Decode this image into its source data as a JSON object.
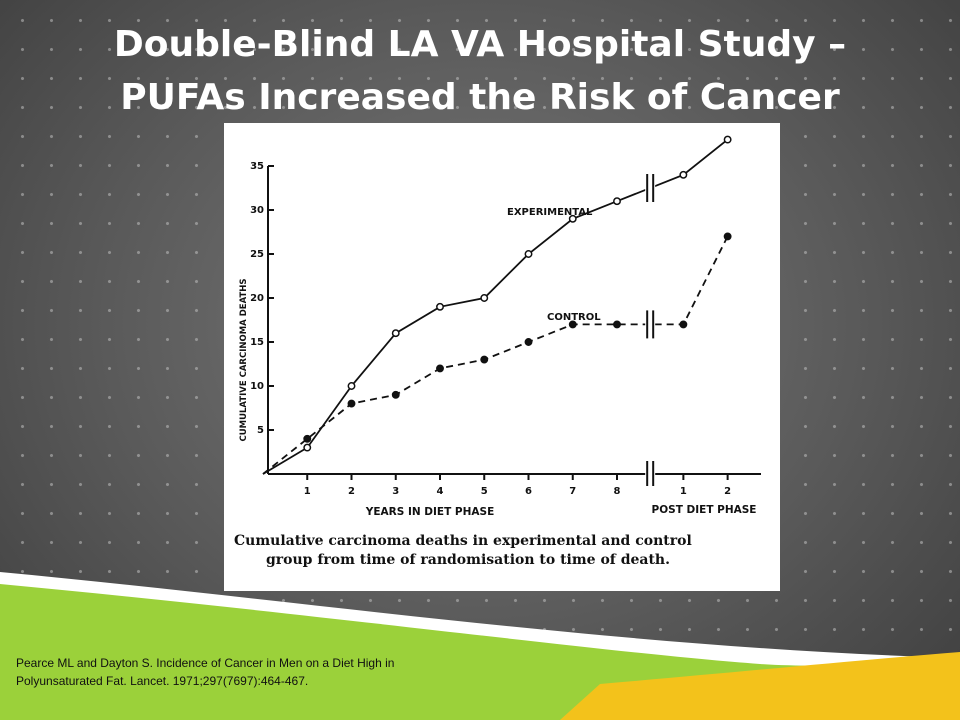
{
  "slide": {
    "title_line1": "Double-Blind LA VA Hospital Study –",
    "title_line2": "PUFAs Increased the Risk of Cancer",
    "citation_line1": "Pearce ML and Dayton S.  Incidence of Cancer in Men on a Diet High in",
    "citation_line2": "Polyunsaturated Fat. Lancet. 1971;297(7697):464-467.",
    "colors": {
      "background": "#5a5a5a",
      "title": "#ffffff",
      "swoosh_green": "#9bd13a",
      "swoosh_yellow": "#f3c21b"
    }
  },
  "chart_data": {
    "type": "line",
    "ylabel": "CUMULATIVE CARCINOMA DEATHS",
    "ylim": [
      0,
      35
    ],
    "yticks": [
      5,
      10,
      15,
      20,
      25,
      30,
      35
    ],
    "phases": [
      {
        "name": "YEARS IN DIET PHASE",
        "ticks": [
          "1",
          "2",
          "3",
          "4",
          "5",
          "6",
          "7",
          "8"
        ]
      },
      {
        "name": "POST DIET PHASE",
        "ticks": [
          "1",
          "2"
        ]
      }
    ],
    "x_slots": [
      0,
      1,
      2,
      3,
      4,
      5,
      6,
      7,
      8,
      9.5,
      10.5
    ],
    "axis_break_after": 8,
    "series": [
      {
        "name": "EXPERIMENTAL",
        "style": "solid",
        "marker": "open",
        "values": [
          0,
          3,
          10,
          16,
          19,
          20,
          25,
          29,
          31,
          34,
          38
        ]
      },
      {
        "name": "CONTROL",
        "style": "dashed",
        "marker": "filled",
        "values": [
          0,
          4,
          8,
          9,
          12,
          13,
          15,
          17,
          17,
          17,
          27
        ]
      }
    ],
    "caption_line1": "Cumulative carcinoma deaths in experimental and control",
    "caption_line2": "group from time of randomisation to time of death."
  }
}
